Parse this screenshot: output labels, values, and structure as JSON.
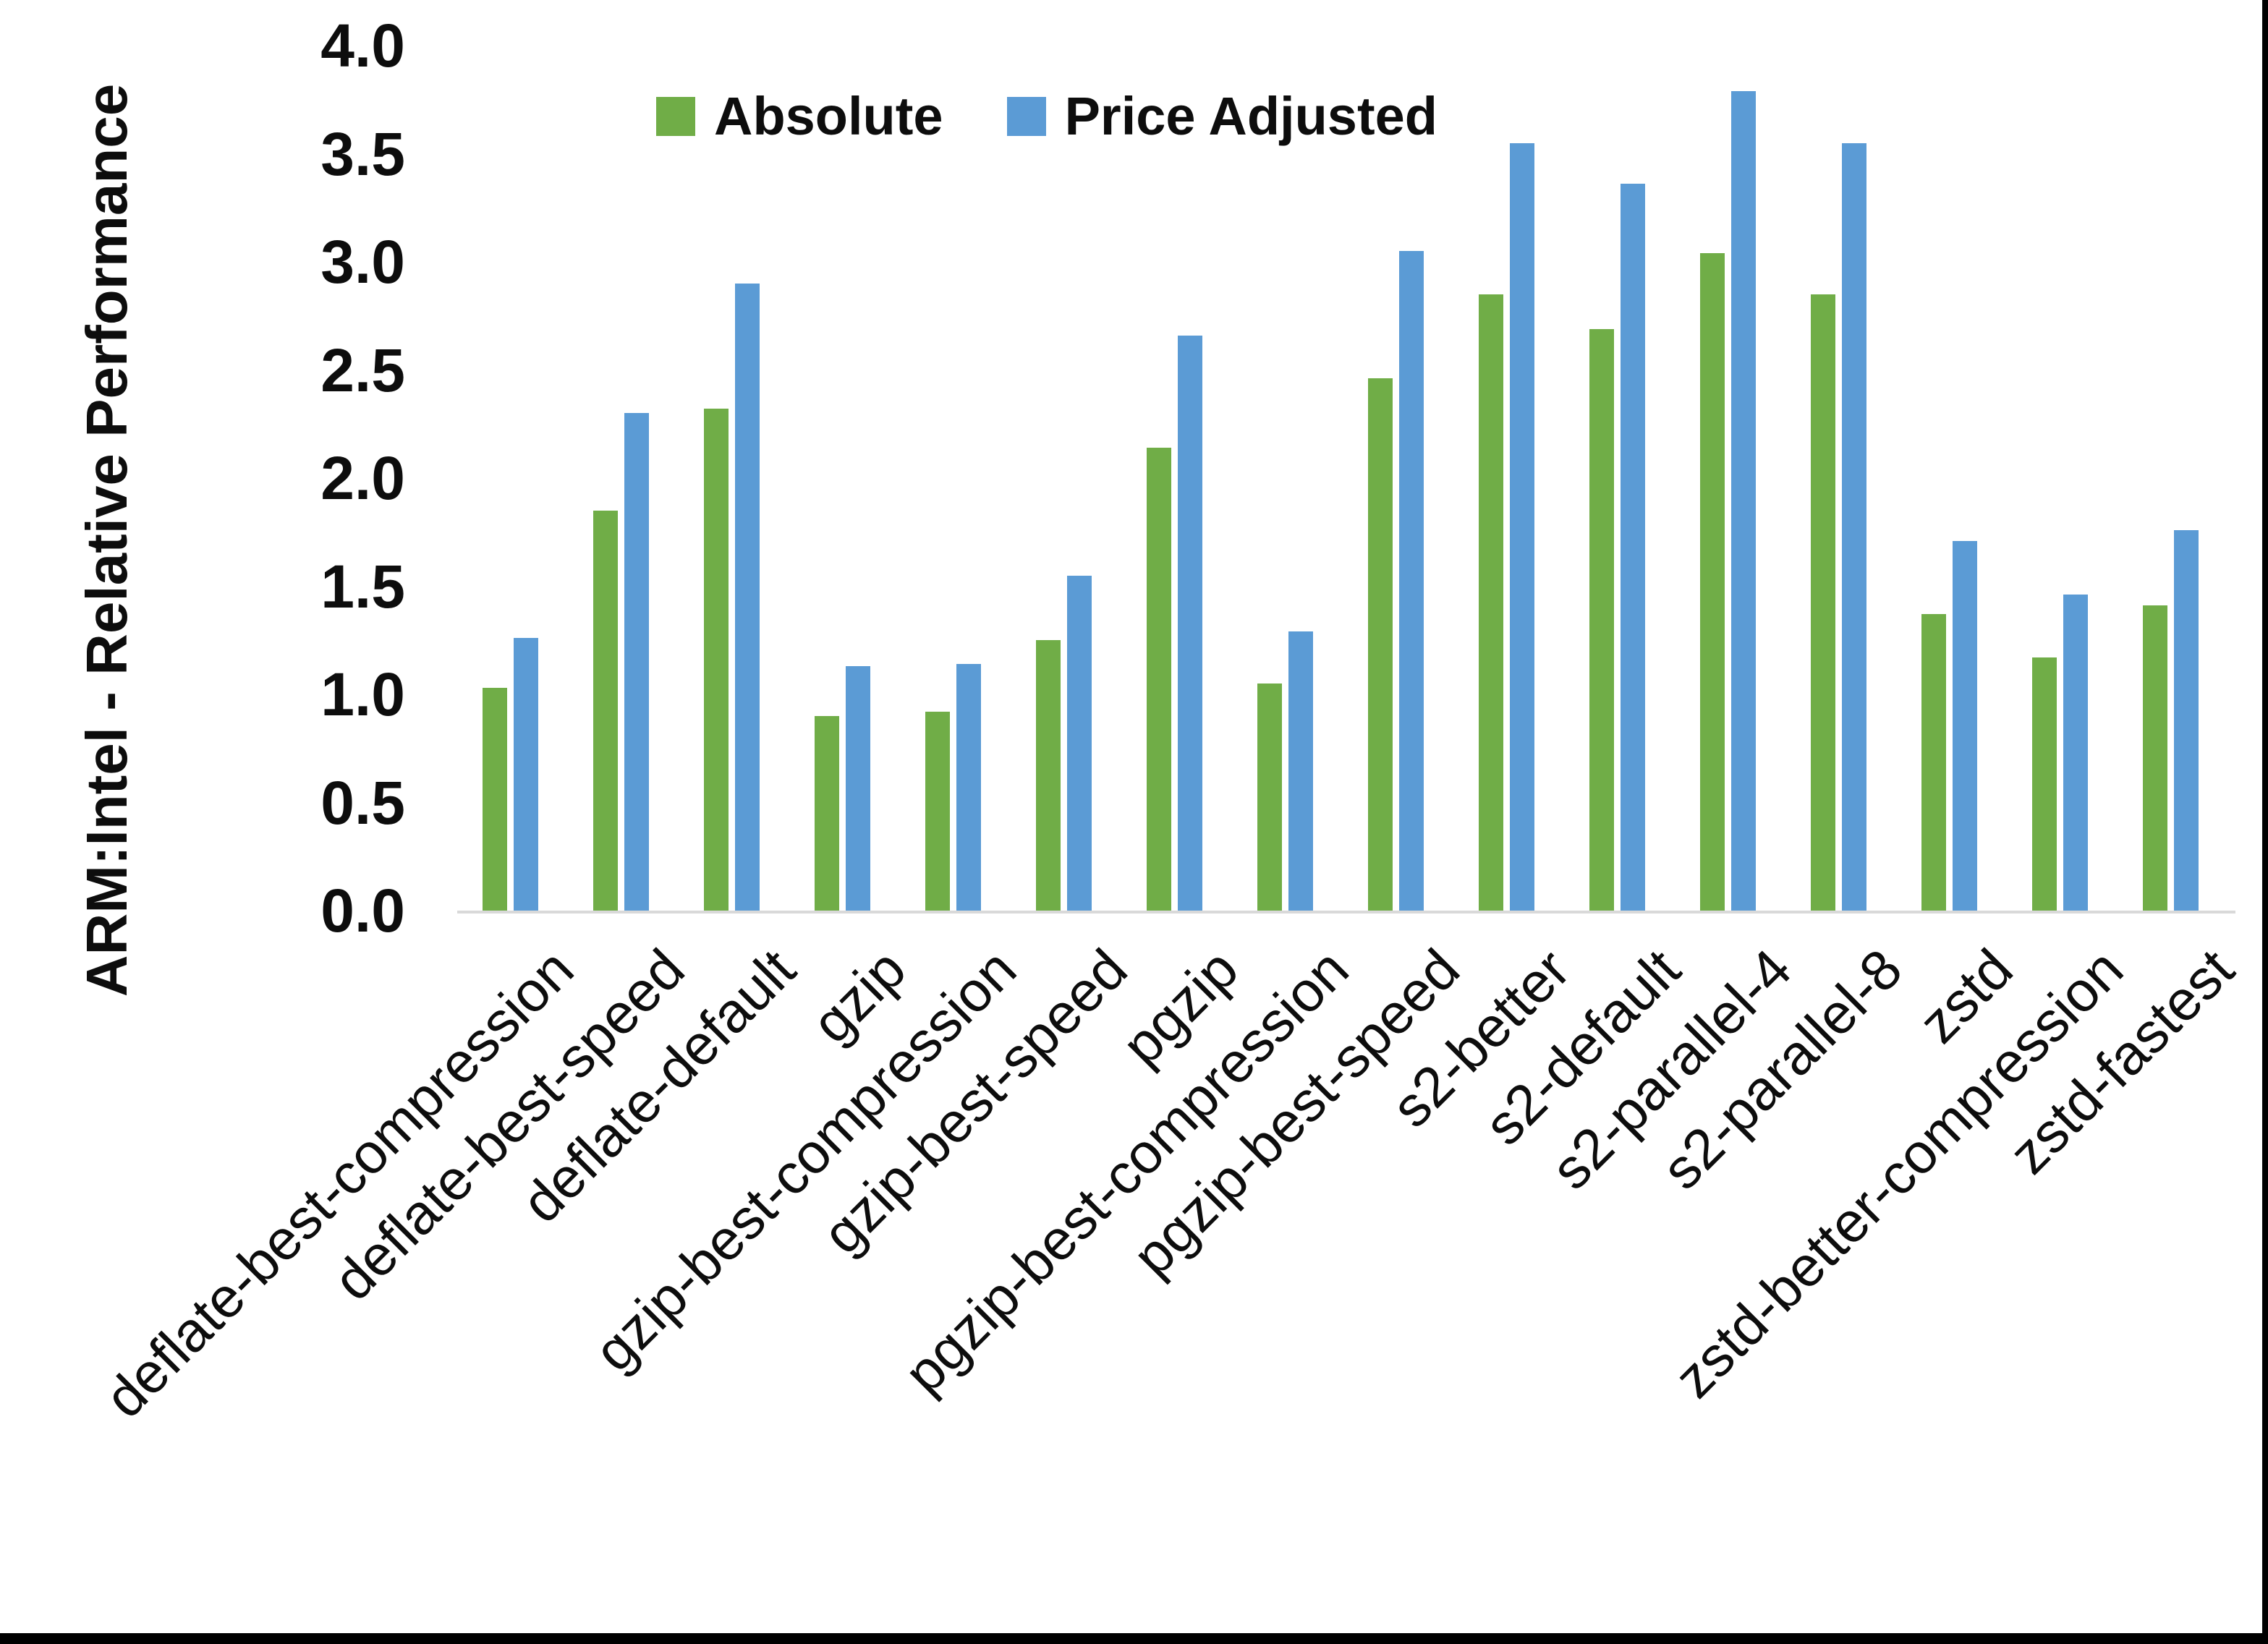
{
  "chart_data": {
    "type": "bar",
    "title": "",
    "ylabel": "ARM:Intel - Relative Performance",
    "xlabel": "",
    "ylim": [
      0.0,
      4.0
    ],
    "ytick_step": 0.5,
    "ytick_labels": [
      "4.0",
      "3.5",
      "3.0",
      "2.5",
      "2.0",
      "1.5",
      "1.0",
      "0.5",
      "0.0"
    ],
    "grid": false,
    "legend_position": "top-center",
    "background_color": "#FFFFFF",
    "axis_line_color": "#D9D9D9",
    "categories": [
      "deflate-best-compression",
      "deflate-best-speed",
      "deflate-default",
      "gzip",
      "gzip-best-compression",
      "gzip-best-speed",
      "pgzip",
      "pgzip-best-compression",
      "pgzip-best-speed",
      "s2-better",
      "s2-default",
      "s2-parallel-4",
      "s2-parallel-8",
      "zstd",
      "zstd-better-compression",
      "zstd-fastest"
    ],
    "series": [
      {
        "name": "Absolute",
        "color": "#70AD47",
        "values": [
          1.03,
          1.85,
          2.32,
          0.9,
          0.92,
          1.25,
          2.14,
          1.05,
          2.46,
          2.85,
          2.69,
          3.04,
          2.85,
          1.37,
          1.17,
          1.41
        ]
      },
      {
        "name": "Price Adjusted",
        "color": "#5B9BD5",
        "values": [
          1.26,
          2.3,
          2.9,
          1.13,
          1.14,
          1.55,
          2.66,
          1.29,
          3.05,
          3.55,
          3.36,
          3.79,
          3.55,
          1.71,
          1.46,
          1.76
        ]
      }
    ]
  }
}
